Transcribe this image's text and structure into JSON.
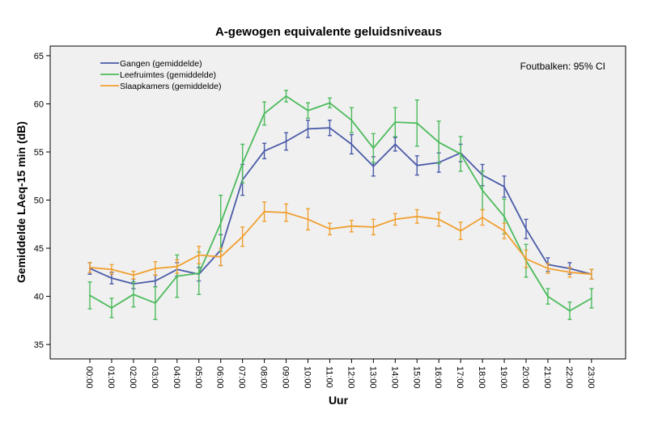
{
  "chart_data": {
    "type": "line",
    "title": "A-gewogen equivalente geluidsniveaus",
    "xlabel": "Uur",
    "ylabel": "Gemiddelde LAeq-15 min (dB)",
    "annotation": "Foutbalken: 95% CI",
    "ylim": [
      33.5,
      66
    ],
    "yticks": [
      35,
      40,
      45,
      50,
      55,
      60,
      65
    ],
    "grid": false,
    "legend_position": "top-left",
    "categories": [
      "00:00",
      "01:00",
      "02:00",
      "03:00",
      "04:00",
      "05:00",
      "06:00",
      "07:00",
      "08:00",
      "09:00",
      "10:00",
      "11:00",
      "12:00",
      "13:00",
      "14:00",
      "15:00",
      "16:00",
      "17:00",
      "18:00",
      "19:00",
      "20:00",
      "21:00",
      "22:00",
      "23:00"
    ],
    "series": [
      {
        "name": "Gangen (gemiddelde)",
        "color": "#4a5ba8",
        "values": [
          42.9,
          41.9,
          41.3,
          41.6,
          42.8,
          42.3,
          44.8,
          52.1,
          55.1,
          56.1,
          57.4,
          57.5,
          55.8,
          53.5,
          55.8,
          53.6,
          53.9,
          54.9,
          52.6,
          51.4,
          47.0,
          43.3,
          42.9,
          42.3
        ],
        "ci_low": [
          42.3,
          41.3,
          40.8,
          41.0,
          42.1,
          41.6,
          43.2,
          50.5,
          54.3,
          55.2,
          56.5,
          56.7,
          54.8,
          52.5,
          55.1,
          52.6,
          52.9,
          54.0,
          51.5,
          50.3,
          46.0,
          42.6,
          42.3,
          41.8
        ],
        "ci_high": [
          43.5,
          42.5,
          41.8,
          42.2,
          43.5,
          43.0,
          46.4,
          53.7,
          55.9,
          57.0,
          58.3,
          58.3,
          56.8,
          54.5,
          56.5,
          54.6,
          54.9,
          55.8,
          53.7,
          52.5,
          48.0,
          44.0,
          43.5,
          42.8
        ]
      },
      {
        "name": "Leefruimtes (gemiddelde)",
        "color": "#4cbb5c",
        "values": [
          40.1,
          38.8,
          40.2,
          39.3,
          42.1,
          42.4,
          47.6,
          53.8,
          59.0,
          60.8,
          59.3,
          60.1,
          58.3,
          55.4,
          58.1,
          58.0,
          56.0,
          54.8,
          51.0,
          48.3,
          43.7,
          40.0,
          38.5,
          39.8
        ],
        "ci_low": [
          38.7,
          37.8,
          38.9,
          37.6,
          39.9,
          40.2,
          44.7,
          51.8,
          57.8,
          60.2,
          58.5,
          59.6,
          57.0,
          53.9,
          56.6,
          55.6,
          53.8,
          53.0,
          49.0,
          46.5,
          42.0,
          39.2,
          37.6,
          38.8
        ],
        "ci_high": [
          41.5,
          39.8,
          41.5,
          41.0,
          44.3,
          44.6,
          50.5,
          55.8,
          60.2,
          61.4,
          60.1,
          60.6,
          59.6,
          56.9,
          59.6,
          60.4,
          58.2,
          56.6,
          53.0,
          50.1,
          45.4,
          40.8,
          39.4,
          40.8
        ]
      },
      {
        "name": "Slaapkamers (gemiddelde)",
        "color": "#f0a030",
        "values": [
          43.0,
          42.8,
          42.2,
          42.9,
          43.1,
          44.3,
          44.1,
          46.2,
          48.8,
          48.7,
          48.0,
          47.0,
          47.3,
          47.2,
          48.0,
          48.3,
          48.0,
          46.8,
          48.2,
          46.8,
          43.9,
          42.9,
          42.5,
          42.3
        ],
        "ci_low": [
          42.5,
          42.3,
          41.8,
          42.2,
          42.4,
          43.4,
          43.2,
          45.2,
          47.8,
          47.8,
          46.9,
          46.4,
          46.7,
          46.4,
          47.4,
          47.6,
          47.3,
          45.9,
          47.4,
          46.0,
          43.0,
          42.4,
          42.0,
          41.8
        ],
        "ci_high": [
          43.5,
          43.3,
          42.6,
          43.6,
          43.8,
          45.2,
          45.0,
          47.2,
          49.8,
          49.6,
          49.1,
          47.6,
          47.9,
          48.0,
          48.6,
          49.0,
          48.7,
          47.7,
          49.0,
          47.6,
          44.8,
          43.4,
          43.0,
          42.8
        ]
      }
    ]
  }
}
